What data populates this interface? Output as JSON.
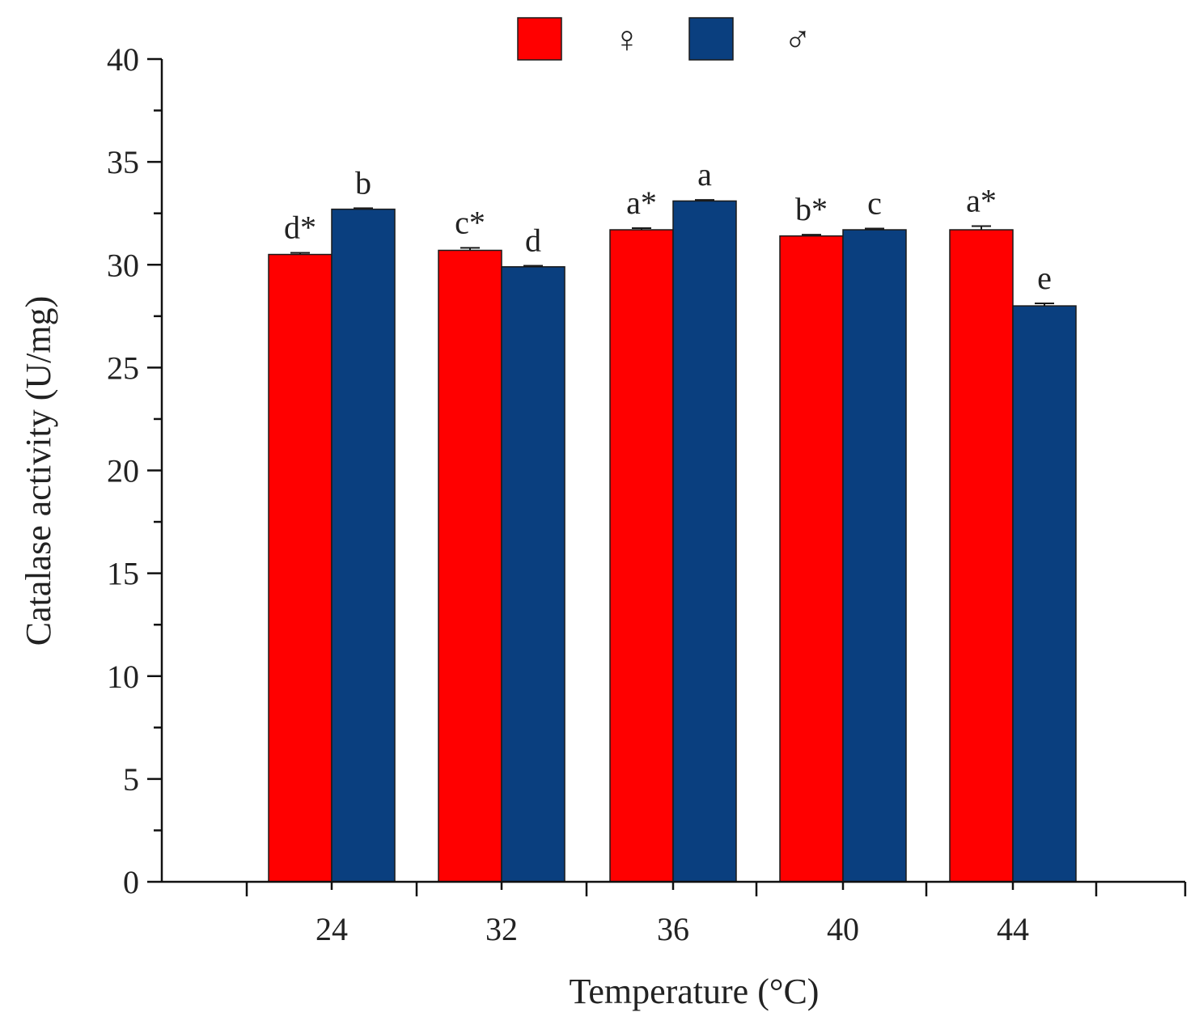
{
  "chart_data": {
    "type": "bar",
    "title": "",
    "xlabel": "Temperature (°C)",
    "ylabel": "Catalase activity (U/mg)",
    "categories": [
      "24",
      "32",
      "36",
      "40",
      "44"
    ],
    "ylim": [
      0,
      40
    ],
    "yticks": [
      0,
      5,
      10,
      15,
      20,
      25,
      30,
      35,
      40
    ],
    "ytick_labels": [
      "0",
      "5",
      "10",
      "15",
      "20",
      "25",
      "30",
      "35",
      "40"
    ],
    "grid": false,
    "legend_position": "top-center",
    "series": [
      {
        "name": "♀",
        "color": "#ff0000",
        "values": [
          30.5,
          30.7,
          31.7,
          31.4,
          31.7
        ],
        "errors": [
          0.08,
          0.12,
          0.08,
          0.06,
          0.18
        ],
        "labels": [
          "d*",
          "c*",
          "a*",
          "b*",
          "a*"
        ]
      },
      {
        "name": "♂",
        "color": "#0a3f7f",
        "values": [
          32.7,
          29.9,
          33.1,
          31.7,
          28.0
        ],
        "errors": [
          0.05,
          0.05,
          0.05,
          0.06,
          0.12
        ],
        "labels": [
          "b",
          "d",
          "a",
          "c",
          "e"
        ]
      }
    ]
  }
}
